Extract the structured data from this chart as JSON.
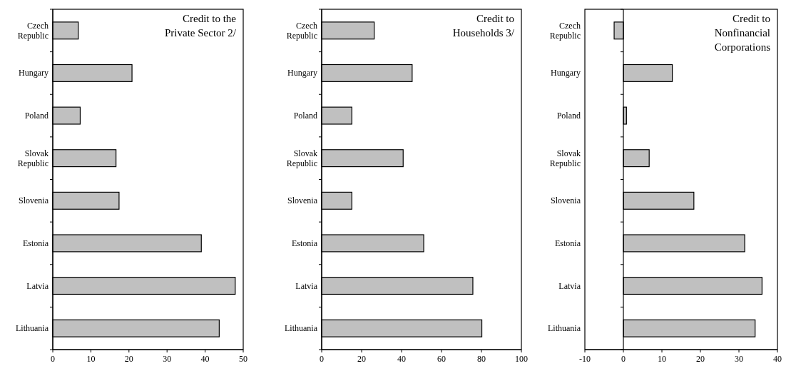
{
  "chart_data": [
    {
      "type": "bar",
      "orientation": "horizontal",
      "title": "Credit to the Private Sector 2/",
      "categories": [
        "Czech Republic",
        "Hungary",
        "Poland",
        "Slovak Republic",
        "Slovenia",
        "Estonia",
        "Latvia",
        "Lithuania"
      ],
      "values": [
        6.7,
        20.8,
        7.2,
        16.6,
        17.4,
        39.0,
        47.9,
        43.7
      ],
      "color": "#c0c0c0",
      "xlim": [
        0,
        50
      ],
      "xticks": [
        0,
        10,
        20,
        30,
        40,
        50
      ]
    },
    {
      "type": "bar",
      "orientation": "horizontal",
      "title": "Credit to Households 3/",
      "categories": [
        "Czech Republic",
        "Hungary",
        "Poland",
        "Slovak Republic",
        "Slovenia",
        "Estonia",
        "Latvia",
        "Lithuania"
      ],
      "values": [
        26.3,
        45.3,
        15.1,
        40.8,
        15.1,
        51.1,
        75.7,
        80.2
      ],
      "color": "#c0c0c0",
      "xlim": [
        0,
        100
      ],
      "xticks": [
        0,
        20,
        40,
        60,
        80,
        100
      ]
    },
    {
      "type": "bar",
      "orientation": "horizontal",
      "title": "Credit to Nonfinancial Corporations",
      "categories": [
        "Czech Republic",
        "Hungary",
        "Poland",
        "Slovak Republic",
        "Slovenia",
        "Estonia",
        "Latvia",
        "Lithuania"
      ],
      "values": [
        -2.4,
        12.7,
        0.8,
        6.7,
        18.3,
        31.5,
        36.0,
        34.2
      ],
      "color": "#c0c0c0",
      "xlim": [
        -10,
        40
      ],
      "xticks": [
        -10,
        0,
        10,
        20,
        30,
        40
      ]
    }
  ]
}
